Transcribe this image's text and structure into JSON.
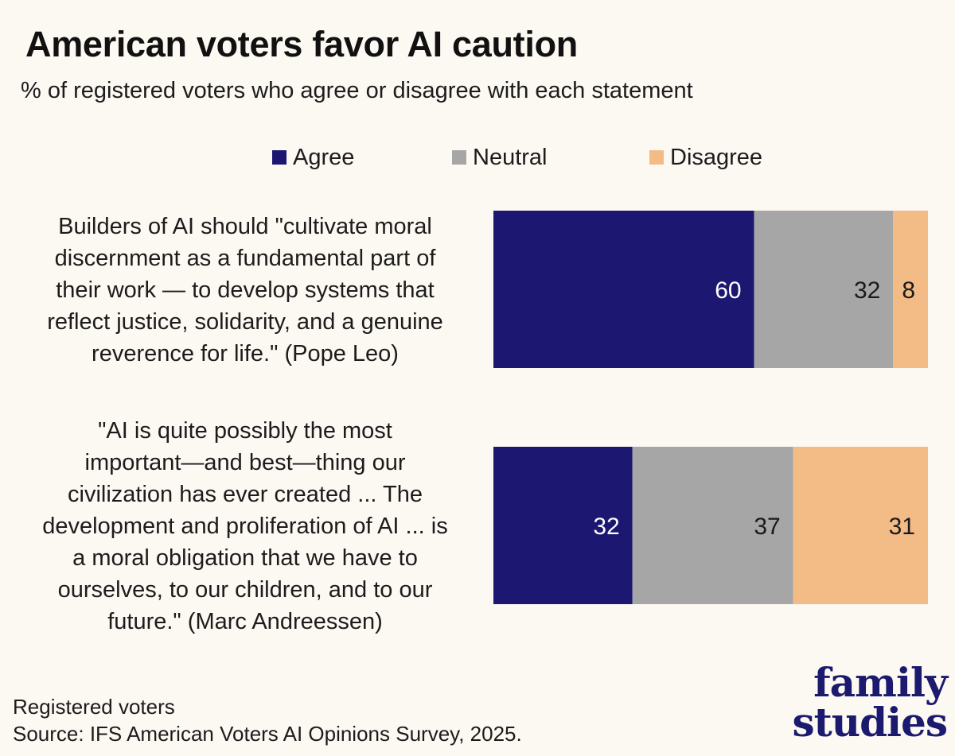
{
  "header": {
    "title": "American voters favor AI caution",
    "subtitle": "% of registered voters who agree or disagree with each statement"
  },
  "chart_data": {
    "type": "bar",
    "orientation": "horizontal",
    "stacked": true,
    "categories": [
      "Builders of AI should \"cultivate moral discernment as a fundamental part of their work — to develop systems that reflect justice, solidarity, and a genuine reverence for life.\" (Pope Leo)",
      "\"AI is quite possibly the most important—and best—thing our civilization has ever created ... The development and proliferation of AI ... is a moral obligation that we have to ourselves, to our children, and to our future.\" (Marc Andreessen)"
    ],
    "category_lines": [
      [
        "Builders of AI should \"cultivate moral",
        "discernment as a fundamental part of",
        "their work — to develop systems that",
        "reflect justice, solidarity, and a genuine",
        "reverence for life.\" (Pope Leo)"
      ],
      [
        "\"AI is quite possibly the most",
        "important—and best—thing our",
        "civilization has ever created ... The",
        "development and proliferation of AI ... is",
        "a moral obligation that we have to",
        "ourselves, to our children, and to our",
        "future.\" (Marc Andreessen)"
      ]
    ],
    "series": [
      {
        "name": "Agree",
        "color": "#1c1770",
        "label_color": "#ffffff",
        "values": [
          60,
          32
        ]
      },
      {
        "name": "Neutral",
        "color": "#a6a6a6",
        "label_color": "#1a1a1a",
        "values": [
          32,
          37
        ]
      },
      {
        "name": "Disagree",
        "color": "#f3bb86",
        "label_color": "#1a1a1a",
        "values": [
          8,
          31
        ]
      }
    ],
    "xlim": [
      0,
      100
    ],
    "legend_position": "top",
    "grid": false,
    "xlabel": "",
    "ylabel": ""
  },
  "footer": {
    "note": "Registered voters",
    "source": "Source: IFS American Voters AI Opinions Survey, 2025."
  },
  "logo": {
    "line1": "family",
    "line2": "studies",
    "color": "#1c1a6e"
  }
}
